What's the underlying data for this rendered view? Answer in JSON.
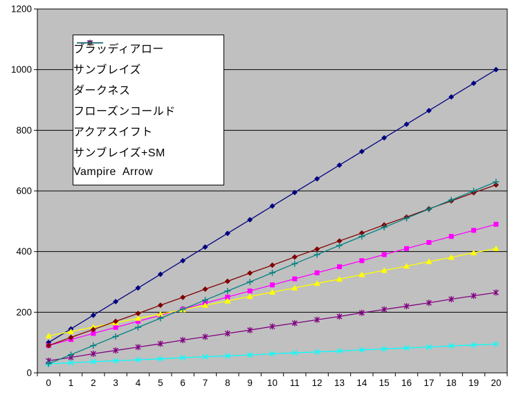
{
  "window": {
    "background": "#FFFFFF"
  },
  "chart_data": {
    "type": "line",
    "title": "",
    "xlabel": "",
    "ylabel": "",
    "x_labels": [
      "0",
      "1",
      "2",
      "3",
      "4",
      "5",
      "6",
      "7",
      "8",
      "9",
      "10",
      "11",
      "12",
      "13",
      "14",
      "15",
      "16",
      "17",
      "18",
      "19",
      "20"
    ],
    "y_axis": {
      "min": 0,
      "max": 1200,
      "interval": 200,
      "tick_labels": [
        "0",
        "200",
        "400",
        "600",
        "800",
        "1000",
        "1200"
      ]
    },
    "grid": true,
    "plot_background": "#C0C0C0",
    "grid_color": "#000000",
    "axis_text_color": "#000000",
    "legend_position": "top-left-inset",
    "legend_background": "#FFFFFF",
    "legend_border": "#000000",
    "series": [
      {
        "name": "ブラッディアロー",
        "color": "#000080",
        "marker": "diamond",
        "values": [
          100,
          145,
          190,
          235,
          280,
          325,
          370,
          415,
          460,
          505,
          550,
          595,
          640,
          685,
          730,
          775,
          820,
          865,
          910,
          955,
          1000
        ]
      },
      {
        "name": "サンブレイズ",
        "color": "#FF00FF",
        "marker": "square",
        "values": [
          90,
          110,
          130,
          150,
          170,
          190,
          210,
          230,
          250,
          270,
          290,
          310,
          330,
          350,
          370,
          390,
          410,
          430,
          450,
          470,
          490
        ]
      },
      {
        "name": "ダークネス",
        "color": "#FFFF00",
        "marker": "triangle",
        "values": [
          122,
          136,
          151,
          165,
          180,
          194,
          208,
          223,
          237,
          252,
          266,
          280,
          295,
          309,
          324,
          338,
          352,
          367,
          381,
          396,
          410
        ]
      },
      {
        "name": "フローズンコールド",
        "color": "#00FFFF",
        "marker": "x",
        "values": [
          30,
          33,
          37,
          40,
          43,
          46,
          50,
          53,
          56,
          59,
          63,
          66,
          69,
          72,
          76,
          79,
          82,
          85,
          89,
          92,
          95
        ]
      },
      {
        "name": "アクアスイフト",
        "color": "#800080",
        "marker": "asterisk",
        "values": [
          40,
          51,
          63,
          74,
          85,
          96,
          108,
          119,
          130,
          141,
          153,
          164,
          175,
          186,
          198,
          209,
          220,
          231,
          243,
          254,
          265
        ]
      },
      {
        "name": "サンブレイズ+SM",
        "color": "#800000",
        "marker": "diamond",
        "values": [
          90,
          117,
          143,
          170,
          196,
          223,
          249,
          276,
          302,
          329,
          355,
          382,
          408,
          435,
          461,
          488,
          514,
          541,
          567,
          594,
          620
        ]
      },
      {
        "name": "Vampire  Arrow",
        "color": "#008080",
        "marker": "plus",
        "values": [
          30,
          60,
          90,
          120,
          150,
          180,
          210,
          240,
          270,
          300,
          330,
          360,
          390,
          420,
          450,
          480,
          510,
          540,
          570,
          600,
          630
        ]
      }
    ]
  }
}
